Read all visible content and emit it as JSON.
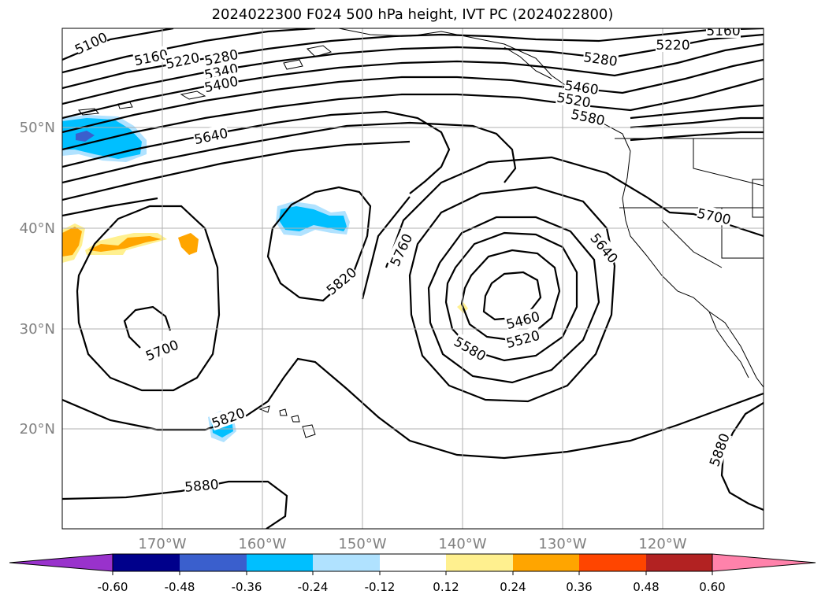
{
  "title": "2024022300 F024 500 hPa height, IVT PC (2024022800)",
  "map": {
    "lat_labels": [
      "50°N",
      "40°N",
      "30°N",
      "20°N"
    ],
    "lon_labels": [
      "170°W",
      "160°W",
      "150°W",
      "140°W",
      "130°W",
      "120°W"
    ],
    "contour_labels": [
      "5100",
      "5160",
      "5220",
      "5280",
      "5340",
      "5400",
      "5640",
      "5160",
      "5220",
      "5280",
      "5460",
      "5520",
      "5580",
      "5640",
      "5700",
      "5760",
      "5820",
      "5700",
      "5460",
      "5520",
      "5580",
      "5820",
      "5880",
      "5880"
    ],
    "colors": {
      "grid": "#b0b0b0",
      "contour": "#000000",
      "coast": "#000000",
      "tick_label": "#808080"
    }
  },
  "colorbar": {
    "ticks": [
      "-0.60",
      "-0.48",
      "-0.36",
      "-0.24",
      "-0.12",
      "0.12",
      "0.24",
      "0.36",
      "0.48",
      "0.60"
    ],
    "colors": [
      "#9932cc",
      "#00008b",
      "#3a5fcd",
      "#00bfff",
      "#b0e2ff",
      "#ffffff",
      "#fff08f",
      "#ffa500",
      "#ff4500",
      "#b22222",
      "#ff82ab"
    ]
  }
}
